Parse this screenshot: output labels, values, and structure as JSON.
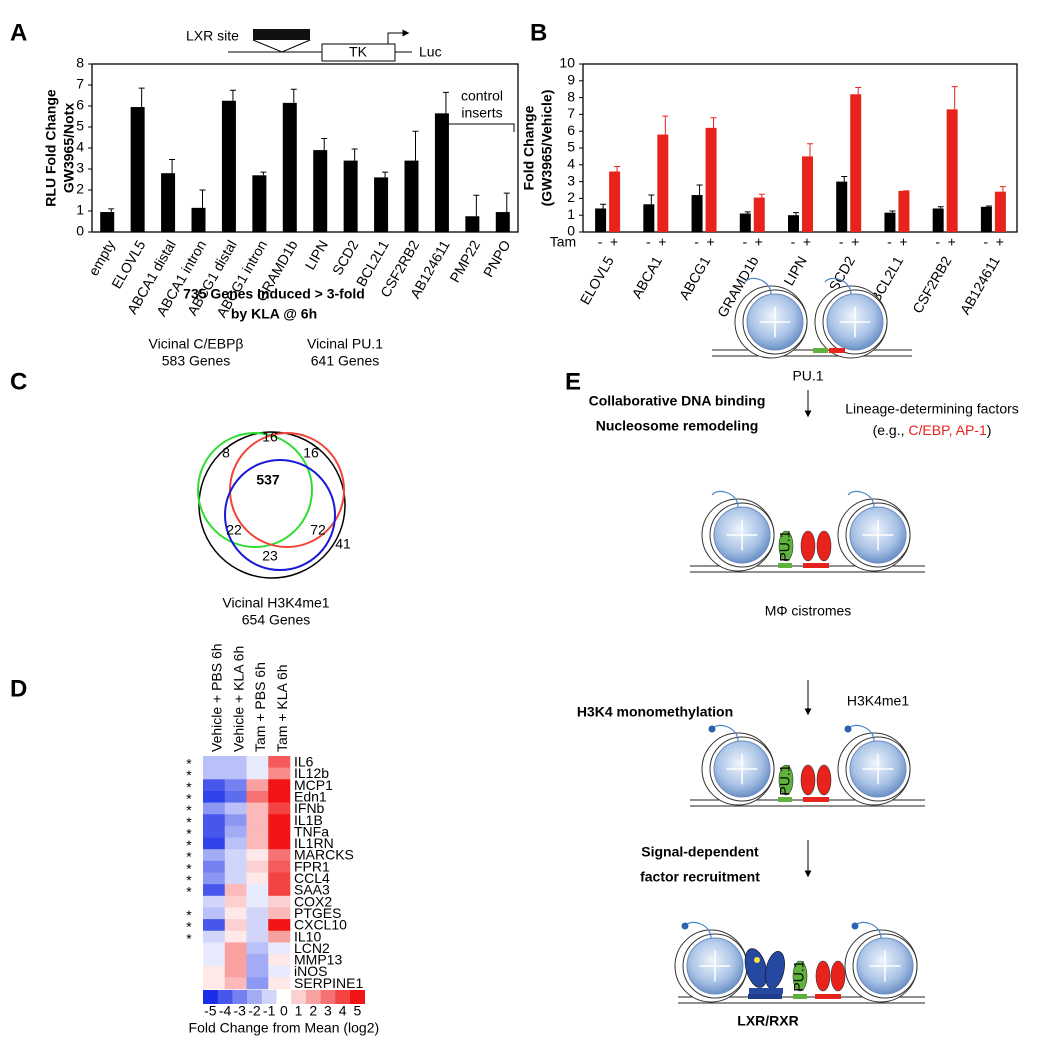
{
  "chart_data": [
    {
      "panel": "A",
      "type": "bar",
      "y_label": [
        "RLU Fold Change",
        "GW3965/Notx"
      ],
      "categories": [
        "empty",
        "ELOVL5",
        "ABCA1 distal",
        "ABCA1 intron",
        "ABCG1 distal",
        "ABCG1 intron",
        "GRAMD1b",
        "LIPN",
        "SCD2",
        "BCL2L1",
        "CSF2RB2",
        "AB124611",
        "PMP22",
        "PNPO"
      ],
      "values": [
        0.95,
        5.95,
        2.8,
        1.15,
        6.25,
        2.7,
        6.15,
        3.9,
        3.4,
        2.6,
        3.4,
        5.65,
        0.75,
        0.95
      ],
      "errors": [
        0.15,
        0.9,
        0.65,
        0.85,
        0.5,
        0.15,
        0.65,
        0.55,
        0.55,
        0.25,
        1.4,
        1.0,
        1.0,
        0.9
      ],
      "color": "#000000",
      "ylim": [
        0,
        8
      ],
      "yticks": [
        0,
        1,
        2,
        3,
        4,
        5,
        6,
        7,
        8
      ],
      "annotation": [
        "control",
        "inserts"
      ],
      "schematic": {
        "site": "LXR site",
        "promoter": "TK",
        "reporter": "Luc"
      }
    },
    {
      "panel": "B",
      "type": "grouped_bar",
      "y_label": [
        "Fold Change",
        "(GW3965/Vehicle)"
      ],
      "group_label": "Tam",
      "categories": [
        "ELOVL5",
        "ABCA1",
        "ABCG1",
        "GRAMD1b",
        "LIPN",
        "SCD2",
        "BCL2L1",
        "CSF2RB2",
        "AB124611"
      ],
      "series": [
        {
          "name": "-",
          "color": "#000000",
          "values": [
            1.4,
            1.65,
            2.2,
            1.1,
            1.0,
            3.0,
            1.15,
            1.4,
            1.5
          ],
          "errors": [
            0.25,
            0.55,
            0.6,
            0.1,
            0.15,
            0.3,
            0.1,
            0.1,
            0.05
          ]
        },
        {
          "name": "+",
          "color": "#e8231b",
          "values": [
            3.6,
            5.8,
            6.2,
            2.05,
            4.5,
            8.2,
            2.45,
            7.3,
            2.4
          ],
          "errors": [
            0.3,
            1.1,
            0.6,
            0.2,
            0.75,
            0.4,
            0,
            1.35,
            0.3
          ]
        }
      ],
      "ylim": [
        0,
        10
      ],
      "yticks": [
        0,
        1,
        2,
        3,
        4,
        5,
        6,
        7,
        8,
        9,
        10
      ]
    },
    {
      "panel": "C",
      "type": "venn",
      "title": [
        "735 Genes Induced > 3-fold",
        "by KLA @ 6h"
      ],
      "sets": [
        {
          "name": "Vicinal C/EBPβ",
          "size_label": "583 Genes",
          "color": "#2fdc2f"
        },
        {
          "name": "Vicinal PU.1",
          "size_label": "641 Genes",
          "color": "#f0443a"
        },
        {
          "name": "Vicinal H3K4me1",
          "size_label": "654 Genes",
          "color": "#1a1ad6"
        }
      ],
      "regions": [
        16,
        8,
        16,
        537,
        22,
        72,
        23,
        41
      ]
    },
    {
      "panel": "D",
      "type": "heatmap",
      "columns": [
        "Vehicle + PBS 6h",
        "Vehicle + KLA 6h",
        "Tam + PBS 6h",
        "Tam + KLA 6h"
      ],
      "rows": [
        "IL6",
        "IL12b",
        "MCP1",
        "Edn1",
        "IFNb",
        "IL1B",
        "TNFa",
        "IL1RN",
        "MARCKS",
        "FPR1",
        "CCL4",
        "SAA3",
        "COX2",
        "PTGES",
        "CXCL10",
        "IL10",
        "LCN2",
        "MMP13",
        "iNOS",
        "SERPINE1"
      ],
      "values": [
        [
          -1.5,
          -1.5,
          -0.5,
          3.5
        ],
        [
          -1.5,
          -1.5,
          -0.5,
          2.5
        ],
        [
          -4,
          -3,
          2,
          5
        ],
        [
          -4.5,
          -3.5,
          3,
          5
        ],
        [
          -2.5,
          -1.5,
          1.5,
          4
        ],
        [
          -4,
          -2.5,
          1.5,
          5
        ],
        [
          -4,
          -2,
          1.5,
          5
        ],
        [
          -4.5,
          -1.5,
          1.5,
          5
        ],
        [
          -2,
          -1,
          0.5,
          3
        ],
        [
          -3,
          -1,
          1,
          3.5
        ],
        [
          -2.5,
          -1,
          0.5,
          4
        ],
        [
          -4,
          1.5,
          -0.5,
          4
        ],
        [
          -1,
          1,
          -0.5,
          1
        ],
        [
          -1.5,
          0.5,
          -1,
          1.5
        ],
        [
          -4,
          1,
          -1,
          5
        ],
        [
          -1,
          0.5,
          -1,
          2
        ],
        [
          -0.5,
          2,
          -1.5,
          -0.5
        ],
        [
          -0.5,
          2,
          -2,
          0.5
        ],
        [
          0.5,
          2,
          -2,
          -0.5
        ],
        [
          0.5,
          1.5,
          -2.5,
          0.5
        ]
      ],
      "marked": [
        true,
        true,
        true,
        true,
        true,
        true,
        true,
        true,
        true,
        true,
        true,
        true,
        false,
        true,
        true,
        true,
        false,
        false,
        false,
        false
      ],
      "marker": "*",
      "zlim": [
        -5,
        5
      ],
      "colorbar_ticks": [
        -5,
        -4,
        -3,
        -2,
        -1,
        0,
        1,
        2,
        3,
        4,
        5
      ],
      "colorbar_label": "Fold Change from Mean (log2)"
    }
  ],
  "diagram": {
    "panel": "E",
    "stage1_label": "PU.1",
    "step1": [
      "Collaborative DNA binding",
      "Nucleosome remodeling"
    ],
    "side_note": {
      "line1": "Lineage-determining factors",
      "prefix": "(e.g., ",
      "highlight": "C/EBP, AP-1",
      "suffix": ")"
    },
    "stage2_label": "MΦ cistromes",
    "step2": "H3K4 monomethylation",
    "mark_label": "H3K4me1",
    "step3": [
      "Signal-dependent",
      "factor recruitment"
    ],
    "factor_label": "PU.1",
    "receptor_label": "LXR/RXR"
  }
}
